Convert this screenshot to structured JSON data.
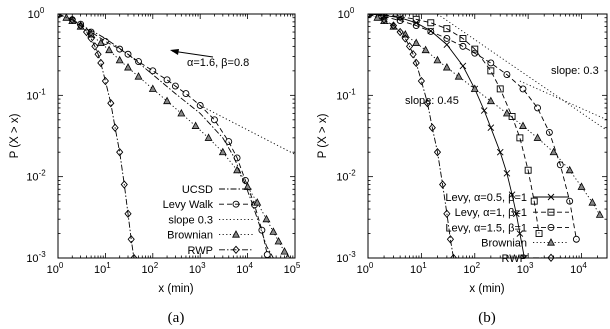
{
  "chart_data": [
    {
      "panel": "(a)",
      "type": "line",
      "log_x": true,
      "log_y": true,
      "xlabel": "x (min)",
      "ylabel": "P (X > x)",
      "xlim": [
        1,
        100000
      ],
      "ylim": [
        0.001,
        1
      ],
      "x_ticks": [
        {
          "v": 1,
          "base": "10",
          "exp": "0"
        },
        {
          "v": 10,
          "base": "10",
          "exp": "1"
        },
        {
          "v": 100,
          "base": "10",
          "exp": "2"
        },
        {
          "v": 1000,
          "base": "10",
          "exp": "3"
        },
        {
          "v": 10000,
          "base": "10",
          "exp": "4"
        },
        {
          "v": 100000,
          "base": "10",
          "exp": "5"
        }
      ],
      "y_ticks": [
        {
          "v": 0.001,
          "base": "10",
          "exp": "-3"
        },
        {
          "v": 0.01,
          "base": "10",
          "exp": "-2"
        },
        {
          "v": 0.1,
          "base": "10",
          "exp": "-1"
        },
        {
          "v": 1,
          "base": "10",
          "exp": "0"
        }
      ],
      "legend_position": "bottom-right",
      "series": [
        {
          "name": "UCSD",
          "style": "dashdot",
          "marker": "none",
          "x": [
            1,
            2,
            5,
            10,
            30,
            100,
            300,
            1000,
            3000,
            5000,
            8000,
            12000,
            18000,
            25000,
            35000
          ],
          "y": [
            1,
            0.83,
            0.63,
            0.5,
            0.32,
            0.18,
            0.105,
            0.06,
            0.03,
            0.018,
            0.0095,
            0.005,
            0.0025,
            0.0014,
            0.001
          ]
        },
        {
          "name": "Levy Walk",
          "style": "dashed",
          "marker": "circle",
          "x": [
            1,
            2,
            3,
            5,
            10,
            20,
            30,
            50,
            100,
            200,
            300,
            500,
            1000,
            2000,
            4000,
            6000,
            9000,
            14000,
            20000,
            26000
          ],
          "y": [
            1,
            0.85,
            0.75,
            0.6,
            0.46,
            0.37,
            0.32,
            0.26,
            0.2,
            0.155,
            0.13,
            0.105,
            0.075,
            0.05,
            0.027,
            0.017,
            0.009,
            0.0045,
            0.0022,
            0.0011
          ]
        },
        {
          "name": "slope 0.3",
          "style": "dotted",
          "marker": "none",
          "x": [
            1000,
            100000
          ],
          "y": [
            0.075,
            0.0188
          ]
        },
        {
          "name": "Brownian",
          "style": "dotted",
          "marker": "triangle",
          "x": [
            1,
            1.5,
            2,
            3,
            5,
            8,
            12,
            20,
            30,
            50,
            100,
            200,
            400,
            800,
            1500,
            3000,
            6000,
            10000,
            16000,
            25000,
            35000,
            45000,
            60000,
            70000
          ],
          "y": [
            1,
            0.9,
            0.82,
            0.7,
            0.56,
            0.44,
            0.36,
            0.27,
            0.22,
            0.17,
            0.12,
            0.085,
            0.06,
            0.042,
            0.03,
            0.02,
            0.012,
            0.0075,
            0.0048,
            0.003,
            0.0021,
            0.0016,
            0.0012,
            0.001
          ]
        },
        {
          "name": "RWP",
          "style": "dashdot",
          "marker": "diamond",
          "x": [
            1,
            2,
            3,
            4,
            5,
            6,
            7,
            8,
            10,
            13,
            16,
            20,
            25,
            30,
            35,
            40
          ],
          "y": [
            1,
            0.85,
            0.72,
            0.6,
            0.5,
            0.4,
            0.32,
            0.25,
            0.15,
            0.08,
            0.04,
            0.02,
            0.008,
            0.0035,
            0.0017,
            0.001
          ]
        }
      ],
      "annotations": [
        {
          "text": "α=1.6, β=0.8",
          "arrow_to": {
            "x": 20000,
            "y": 0.25
          }
        }
      ]
    },
    {
      "panel": "(b)",
      "type": "line",
      "log_x": true,
      "log_y": true,
      "xlabel": "x (min)",
      "ylabel": "P (X > x)",
      "xlim": [
        1,
        30000
      ],
      "ylim": [
        0.001,
        1
      ],
      "x_ticks": [
        {
          "v": 1,
          "base": "10",
          "exp": "0"
        },
        {
          "v": 10,
          "base": "10",
          "exp": "1"
        },
        {
          "v": 100,
          "base": "10",
          "exp": "2"
        },
        {
          "v": 1000,
          "base": "10",
          "exp": "3"
        },
        {
          "v": 10000,
          "base": "10",
          "exp": "4"
        }
      ],
      "y_ticks": [
        {
          "v": 0.001,
          "base": "10",
          "exp": "-3"
        },
        {
          "v": 0.01,
          "base": "10",
          "exp": "-2"
        },
        {
          "v": 0.1,
          "base": "10",
          "exp": "-1"
        },
        {
          "v": 1,
          "base": "10",
          "exp": "0"
        }
      ],
      "legend_position": "bottom-right",
      "series": [
        {
          "name": "Levy, α=0.5, β=1",
          "style": "solid",
          "marker": "x",
          "x": [
            1,
            2,
            4,
            8,
            15,
            30,
            60,
            100,
            150,
            200,
            300,
            400,
            500,
            600,
            700,
            850
          ],
          "y": [
            1,
            0.96,
            0.9,
            0.78,
            0.62,
            0.42,
            0.23,
            0.12,
            0.065,
            0.04,
            0.02,
            0.011,
            0.006,
            0.0035,
            0.002,
            0.001
          ]
        },
        {
          "name": "Levy, α=1, β=1",
          "style": "dashed",
          "marker": "square",
          "x": [
            1,
            2,
            4,
            8,
            15,
            30,
            60,
            100,
            200,
            300,
            500,
            700,
            1000,
            1300,
            1600
          ],
          "y": [
            1,
            0.97,
            0.93,
            0.86,
            0.78,
            0.66,
            0.5,
            0.37,
            0.2,
            0.12,
            0.055,
            0.03,
            0.012,
            0.005,
            0.002
          ]
        },
        {
          "name": "Levy, α=1.5, β=1",
          "style": "dashed",
          "marker": "circle",
          "x": [
            1,
            2,
            4,
            8,
            15,
            30,
            60,
            100,
            200,
            400,
            800,
            1500,
            2500,
            4000,
            6000,
            8000
          ],
          "y": [
            1,
            0.93,
            0.83,
            0.72,
            0.61,
            0.5,
            0.4,
            0.33,
            0.25,
            0.18,
            0.12,
            0.07,
            0.035,
            0.014,
            0.005,
            0.0017
          ]
        },
        {
          "name": "Brownian",
          "style": "dotted",
          "marker": "triangle",
          "x": [
            1,
            1.5,
            2,
            3,
            5,
            8,
            12,
            20,
            30,
            50,
            100,
            200,
            400,
            800,
            1500,
            3000,
            6000,
            10000,
            16000,
            22000
          ],
          "y": [
            1,
            0.9,
            0.82,
            0.7,
            0.56,
            0.44,
            0.36,
            0.27,
            0.22,
            0.17,
            0.12,
            0.085,
            0.06,
            0.042,
            0.03,
            0.02,
            0.012,
            0.0075,
            0.0048,
            0.0034
          ]
        },
        {
          "name": "RWP",
          "style": "dashdot",
          "marker": "diamond",
          "x": [
            1,
            2,
            3,
            4,
            5,
            6,
            7,
            8,
            10,
            13,
            16,
            20,
            25,
            30,
            35,
            40
          ],
          "y": [
            1,
            0.85,
            0.72,
            0.6,
            0.5,
            0.4,
            0.32,
            0.25,
            0.15,
            0.08,
            0.04,
            0.02,
            0.008,
            0.0035,
            0.0017,
            0.001
          ]
        }
      ],
      "reference_lines": [
        {
          "label": "slope: 0.3",
          "x": [
            700,
            30000
          ],
          "y": [
            0.15,
            0.05
          ]
        },
        {
          "label": "slope: 0.45",
          "x": [
            20,
            30000
          ],
          "y": [
            1.0,
            0.037
          ]
        }
      ],
      "annotations": [
        {
          "text": "slope: 0.3"
        },
        {
          "text": "slope: 0.45"
        }
      ]
    }
  ],
  "captions": [
    "(a)",
    "(b)"
  ]
}
